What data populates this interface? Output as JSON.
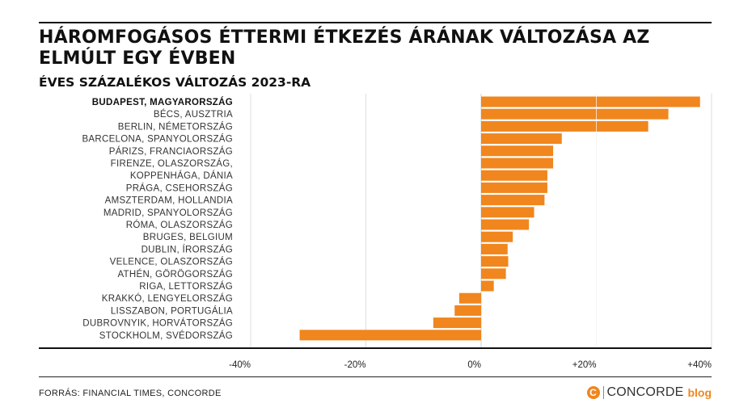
{
  "title": "HÁROMFOGÁSOS ÉTTERMI ÉTKEZÉS ÁRÁNAK VÁLTOZÁSA AZ ELMÚLT EGY ÉVBEN",
  "subtitle": "ÉVES SZÁZALÉKOS VÁLTOZÁS 2023-RA",
  "source": "FORRÁS: FINANCIAL TIMES, CONCORDE",
  "brand": {
    "mark": "C",
    "name": "CONCORDE",
    "suffix": "blog"
  },
  "colors": {
    "bar": "#f0861d",
    "grid": "#dddddd",
    "axis": "#111111"
  },
  "chart_data": {
    "type": "bar",
    "orientation": "horizontal",
    "xlim": [
      -40,
      40
    ],
    "ticks": [
      -40,
      -20,
      0,
      20,
      40
    ],
    "tick_labels": [
      "-40%",
      "-20%",
      "0%",
      "+20%",
      "+40%"
    ],
    "grid": true,
    "highlight": "BUDAPEST, MAGYARORSZÁG",
    "categories": [
      "BUDAPEST, MAGYARORSZÁG",
      "BÉCS, AUSZTRIA",
      "BERLIN, NÉMETORSZÁG",
      "BARCELONA, SPANYOLORSZÁG",
      "PÁRIZS, FRANCIAORSZÁG",
      "FIRENZE, OLASZORSZÁG,",
      "KOPPENHÁGA, DÁNIA",
      "PRÁGA, CSEHORSZÁG",
      "AMSZTERDAM, HOLLANDIA",
      "MADRID, SPANYOLORSZÁG",
      "RÓMA, OLASZORSZÁG",
      "BRUGES, BELGIUM",
      "DUBLIN, ÍRORSZÁG",
      "VELENCE, OLASZORSZÁG",
      "ATHÉN, GÖRÖGORSZÁG",
      "RIGA, LETTORSZÁG",
      "KRAKKÓ, LENGYELORSZÁG",
      "LISSZABON, PORTUGÁLIA",
      "DUBROVNYIK, HORVÁTORSZÁG",
      "STOCKHOLM, SVÉDORSZÁG"
    ],
    "values": [
      38,
      32.5,
      29,
      14,
      12.5,
      12.5,
      11.5,
      11.5,
      11,
      9.2,
      8.3,
      5.5,
      4.6,
      4.7,
      4.3,
      2.2,
      -3.8,
      -4.6,
      -8.3,
      -31.5
    ]
  }
}
